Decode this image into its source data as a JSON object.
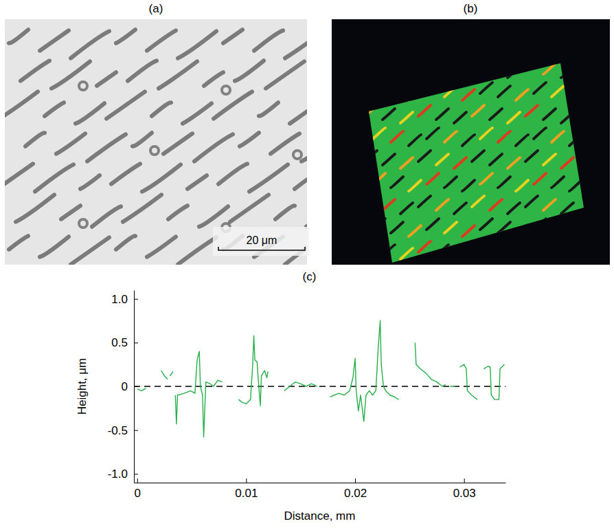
{
  "chart_data": {
    "type": "line",
    "title": "(c)",
    "x_label": "Distance, mm",
    "y_label": "Height, μm",
    "x": [
      0,
      0.0004,
      0.0008,
      null,
      0.0022,
      0.0025,
      0.0028,
      null,
      0.003,
      0.0033,
      null,
      0.0035,
      0.0036,
      0.0037,
      0.0043,
      0.0049,
      0.0053,
      0.0055,
      0.0057,
      0.0058,
      0.006,
      0.0061,
      0.0063,
      0.0067,
      0.007,
      0.0074,
      0.0078,
      null,
      0.0093,
      0.0096,
      0.01,
      0.0104,
      0.0106,
      0.0107,
      0.0108,
      0.011,
      0.0111,
      0.0113,
      0.0114,
      0.0117,
      0.0119,
      0.012,
      null,
      0.0135,
      0.014,
      0.0145,
      0.015,
      0.0155,
      0.016,
      0.0165,
      null,
      0.0177,
      0.0185,
      0.019,
      0.0195,
      0.0198,
      0.02,
      0.0201,
      0.0203,
      0.0205,
      0.0208,
      0.021,
      0.0213,
      0.0216,
      0.0219,
      0.0221,
      0.0223,
      0.0224,
      0.0226,
      0.0228,
      0.0232,
      0.0236,
      0.024,
      null,
      0.0255,
      0.0256,
      0.026,
      0.0265,
      0.027,
      0.0275,
      0.028,
      0.0283,
      null,
      0.0287,
      0.0292,
      null,
      0.0296,
      0.03,
      0.0302,
      0.0303,
      0.0307,
      0.0312,
      null,
      0.0318,
      0.0322,
      0.0324,
      0.0325,
      0.0328,
      0.0332,
      0.0333,
      0.0337
    ],
    "values": [
      -0.03,
      -0.05,
      -0.02,
      null,
      0.18,
      0.12,
      0.08,
      null,
      0.12,
      0.17,
      null,
      -0.1,
      -0.43,
      -0.1,
      -0.08,
      -0.05,
      -0.08,
      0.3,
      0.4,
      0,
      -0.1,
      -0.58,
      0.05,
      0.03,
      0,
      0.07,
      0.05,
      null,
      -0.15,
      -0.18,
      -0.2,
      -0.15,
      0.25,
      0.58,
      0.3,
      0.28,
      0.1,
      -0.22,
      0.12,
      0.18,
      0.1,
      0.17,
      null,
      -0.05,
      0,
      0.05,
      0.03,
      0,
      0.03,
      0,
      null,
      -0.12,
      -0.08,
      -0.1,
      -0.05,
      0.1,
      0.32,
      -0.05,
      -0.28,
      -0.1,
      -0.4,
      -0.1,
      -0.05,
      -0.1,
      -0.05,
      0.4,
      0.75,
      0.25,
      0,
      -0.05,
      -0.1,
      -0.12,
      -0.15,
      null,
      0.5,
      0.25,
      0.2,
      0.15,
      0.08,
      0.05,
      0,
      0.02,
      null,
      0,
      0,
      null,
      0.22,
      0.25,
      0.2,
      -0.05,
      -0.1,
      -0.15,
      null,
      0.2,
      0.23,
      0.22,
      -0.1,
      -0.15,
      -0.15,
      0.2,
      0.25
    ],
    "color": "#27b04a",
    "xlim": [
      -0.0003,
      0.0338
    ],
    "xticks": [
      0,
      0.01,
      0.02,
      0.03
    ],
    "ylim": [
      -1.1,
      1.1
    ],
    "yticks": [
      {
        "value": -1,
        "label": "-1.0"
      },
      -0.5,
      0,
      0.5,
      {
        "value": 1,
        "label": "1.0"
      }
    ],
    "reference_line": {
      "value": 0,
      "line_style": "dashed"
    },
    "grid": false
  },
  "panels": [
    {
      "label": "(a)",
      "scale_bar": "20 μm"
    },
    {
      "label": "(b)"
    }
  ]
}
